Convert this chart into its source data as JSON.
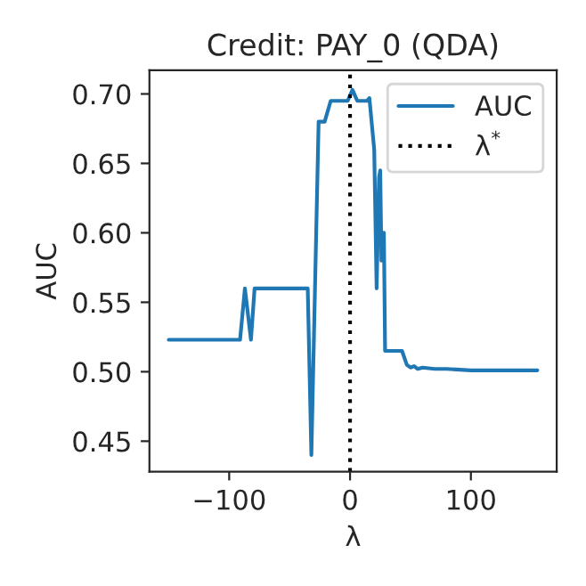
{
  "chart_data": {
    "type": "line",
    "title": "Credit: PAY_0 (QDA)",
    "xlabel": "λ",
    "ylabel": "AUC",
    "series": [
      {
        "name": "AUC",
        "color": "#1f77b4",
        "x": [
          -150,
          -91,
          -87,
          -82,
          -79,
          -35,
          -32,
          -26,
          -21,
          -16,
          -2,
          2,
          6,
          14,
          16,
          20,
          22,
          24,
          25,
          26,
          28,
          29,
          40,
          43,
          47,
          50,
          53,
          56,
          60,
          70,
          80,
          100,
          130,
          155
        ],
        "values": [
          0.523,
          0.523,
          0.56,
          0.523,
          0.56,
          0.56,
          0.44,
          0.68,
          0.68,
          0.695,
          0.695,
          0.703,
          0.695,
          0.695,
          0.697,
          0.66,
          0.56,
          0.64,
          0.645,
          0.58,
          0.6,
          0.515,
          0.515,
          0.515,
          0.505,
          0.503,
          0.504,
          0.502,
          0.503,
          0.502,
          0.502,
          0.501,
          0.501,
          0.501
        ]
      }
    ],
    "ref_lines": [
      {
        "axis": "x",
        "value": 0,
        "label": "λ$^{*}$",
        "color": "#000000",
        "line_style": "dotted"
      }
    ],
    "xlim": [
      -166,
      171
    ],
    "ylim": [
      0.428,
      0.717
    ],
    "xticks": [
      {
        "value": -100,
        "label": "−100"
      },
      0,
      100
    ],
    "yticks": [
      {
        "value": 0.45,
        "label": "0.45"
      },
      {
        "value": 0.5,
        "label": "0.50"
      },
      {
        "value": 0.55,
        "label": "0.55"
      },
      {
        "value": 0.6,
        "label": "0.60"
      },
      {
        "value": 0.65,
        "label": "0.65"
      },
      {
        "value": 0.7,
        "label": "0.70"
      }
    ],
    "legend": "top right",
    "grid": false
  }
}
